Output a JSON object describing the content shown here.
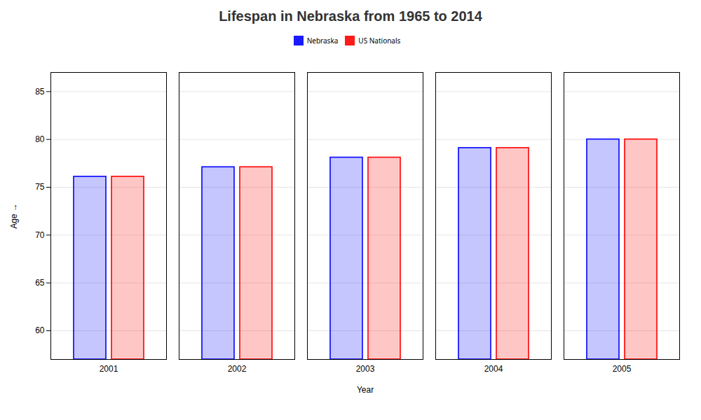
{
  "chart_data": {
    "type": "bar",
    "title": "Lifespan in Nebraska from 1965 to 2014",
    "xlabel": "Year",
    "ylabel": "Age",
    "categories": [
      "2001",
      "2002",
      "2003",
      "2004",
      "2005"
    ],
    "series": [
      {
        "name": "Nebraska",
        "color": "#1a1aff",
        "values": [
          76.1,
          77.1,
          78.1,
          79.1,
          80.0
        ]
      },
      {
        "name": "US Nationals",
        "color": "#ff1a1a",
        "values": [
          76.1,
          77.1,
          78.1,
          79.1,
          80.0
        ]
      }
    ],
    "ylim": [
      57,
      87
    ],
    "yticks": [
      60,
      65,
      70,
      75,
      80,
      85
    ],
    "grid": true,
    "legend": "top"
  }
}
